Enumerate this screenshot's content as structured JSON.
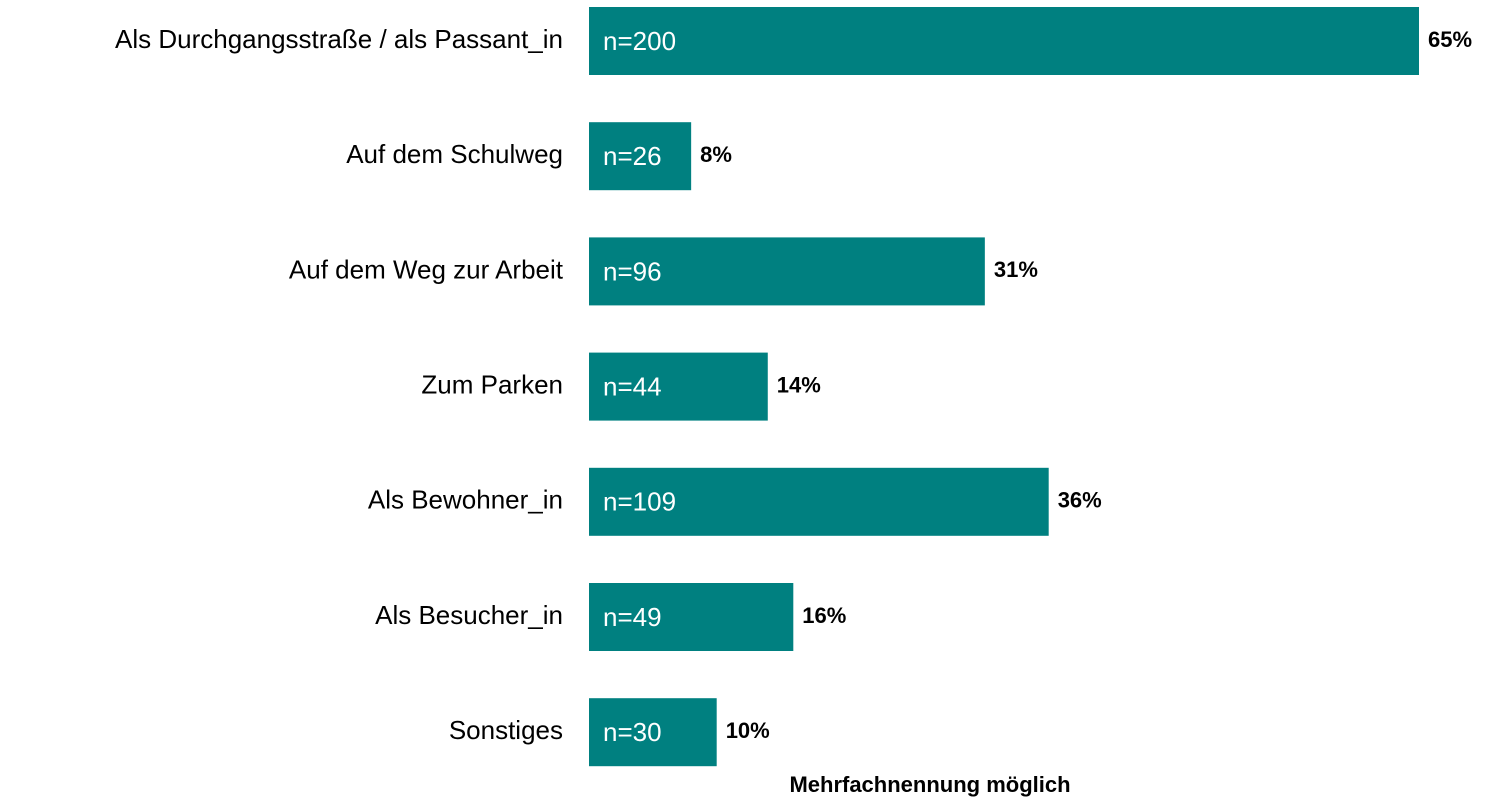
{
  "chart_data": {
    "type": "bar",
    "orientation": "horizontal",
    "categories": [
      "Als Durchgangsstraße / als Passant_in",
      "Auf dem Schulweg",
      "Auf dem Weg zur Arbeit",
      "Zum Parken",
      "Als Bewohner_in",
      "Als Besucher_in",
      "Sonstiges"
    ],
    "values": [
      65,
      8,
      31,
      14,
      36,
      16,
      10
    ],
    "value_labels": [
      "65%",
      "8%",
      "31%",
      "14%",
      "36%",
      "16%",
      "10%"
    ],
    "bar_labels": [
      "n=200",
      "n=26",
      "n=96",
      "n=44",
      "n=109",
      "n=49",
      "n=30"
    ],
    "color": "#008080",
    "note": "Mehrfachnennung möglich"
  }
}
